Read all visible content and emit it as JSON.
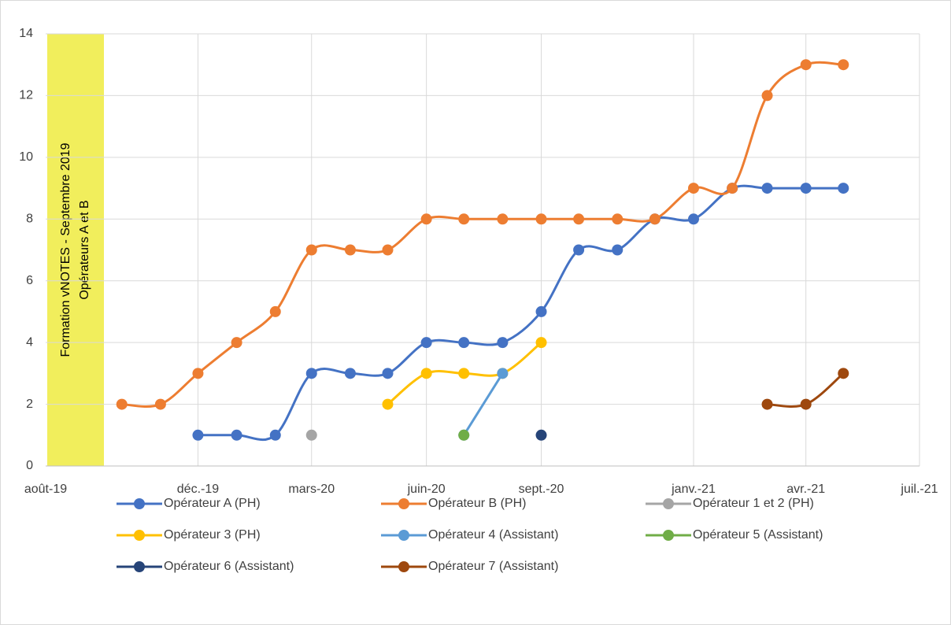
{
  "chart_data": {
    "type": "line",
    "annotation": [
      "Formation vNOTES - Septembre 2019",
      "Opérateurs A et B"
    ],
    "annotation_color": "#f1ee5c",
    "xlim": [
      "2019-08",
      "2021-07"
    ],
    "xticks": [
      {
        "value": "2019-08",
        "label": "août-19"
      },
      {
        "value": "2019-12",
        "label": "déc.-19"
      },
      {
        "value": "2020-03",
        "label": "mars-20"
      },
      {
        "value": "2020-06",
        "label": "juin-20"
      },
      {
        "value": "2020-09",
        "label": "sept.-20"
      },
      {
        "value": "2021-01",
        "label": "janv.-21"
      },
      {
        "value": "2021-04",
        "label": "avr.-21"
      },
      {
        "value": "2021-07",
        "label": "juil.-21"
      }
    ],
    "ylim": [
      0,
      14
    ],
    "yticks": [
      0,
      2,
      4,
      6,
      8,
      10,
      12,
      14
    ],
    "grid": true,
    "smooth": true,
    "legend": "bottom",
    "series": [
      {
        "name": "Opérateur A (PH)",
        "color": "#4472c4",
        "x": [
          "2019-12",
          "2020-01",
          "2020-02",
          "2020-03",
          "2020-04",
          "2020-05",
          "2020-06",
          "2020-07",
          "2020-08",
          "2020-09",
          "2020-10",
          "2020-11",
          "2020-12",
          "2021-01",
          "2021-02",
          "2021-03",
          "2021-04",
          "2021-05"
        ],
        "values": [
          1,
          1,
          1,
          3,
          3,
          3,
          4,
          4,
          4,
          5,
          7,
          7,
          8,
          8,
          9,
          9,
          9,
          9
        ]
      },
      {
        "name": "Opérateur B (PH)",
        "color": "#ed7d31",
        "x": [
          "2019-10",
          "2019-11",
          "2019-12",
          "2020-01",
          "2020-02",
          "2020-03",
          "2020-04",
          "2020-05",
          "2020-06",
          "2020-07",
          "2020-08",
          "2020-09",
          "2020-10",
          "2020-11",
          "2020-12",
          "2021-01",
          "2021-02",
          "2021-03",
          "2021-04",
          "2021-05"
        ],
        "values": [
          2,
          2,
          3,
          4,
          5,
          7,
          7,
          7,
          8,
          8,
          8,
          8,
          8,
          8,
          8,
          9,
          9,
          12,
          13,
          13
        ]
      },
      {
        "name": "Opérateur 1 et 2 (PH)",
        "color": "#a5a5a5",
        "x": [
          "2020-03"
        ],
        "values": [
          1
        ]
      },
      {
        "name": "Opérateur 3 (PH)",
        "color": "#ffc000",
        "x": [
          "2020-05",
          "2020-06",
          "2020-07",
          "2020-08",
          "2020-09"
        ],
        "values": [
          2,
          3,
          3,
          3,
          4
        ]
      },
      {
        "name": "Opérateur 4 (Assistant)",
        "color": "#5b9bd5",
        "x": [
          "2020-07",
          "2020-08"
        ],
        "values": [
          1,
          3
        ]
      },
      {
        "name": "Opérateur 5 (Assistant)",
        "color": "#70ad47",
        "x": [
          "2020-07"
        ],
        "values": [
          1
        ]
      },
      {
        "name": "Opérateur 6 (Assistant)",
        "color": "#264478",
        "x": [
          "2020-09"
        ],
        "values": [
          1
        ]
      },
      {
        "name": "Opérateur 7 (Assistant)",
        "color": "#9e480e",
        "x": [
          "2021-03",
          "2021-04",
          "2021-05"
        ],
        "values": [
          2,
          2,
          3
        ]
      }
    ]
  }
}
